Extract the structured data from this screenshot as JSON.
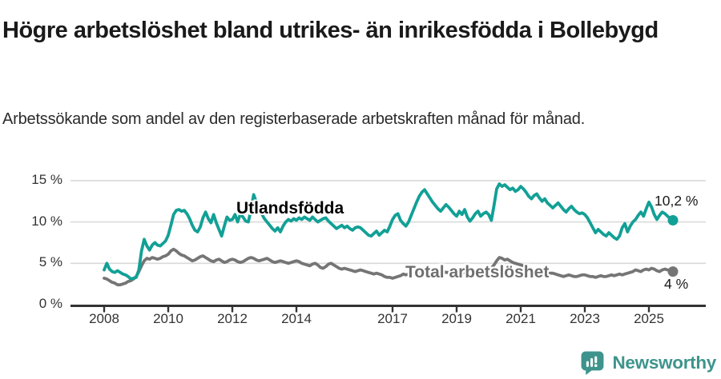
{
  "title": "Högre arbetslöshet bland utrikes- än inrikesfödda i Bollebygd",
  "subtitle": "Arbetssökande som andel av den registerbaserade arbetskraften månad för månad.",
  "branding": {
    "logo_text": "Newsworthy",
    "logo_icon": "newsworthy-speech-bubble-bar-chart"
  },
  "colors": {
    "foreign_born": "#12a096",
    "total": "#757575",
    "axis": "#333333",
    "grid": "#dadada",
    "text": "#1a1a1a",
    "logo": "#3e948c"
  },
  "chart_data": {
    "type": "line",
    "title": "Högre arbetslöshet bland utrikes- än inrikesfödda i Bollebygd",
    "subtitle": "Arbetssökande som andel av den registerbaserade arbetskraften månad för månad.",
    "unit": "%",
    "frequency": "monthly",
    "x_start_year": 2008,
    "x_end": "2025-10",
    "ylim": [
      0,
      15.5
    ],
    "grid": "horizontal",
    "x_ticks": [
      {
        "year": 2008,
        "label": "2008"
      },
      {
        "year": 2010,
        "label": "2010"
      },
      {
        "year": 2012,
        "label": "2012"
      },
      {
        "year": 2014,
        "label": "2014"
      },
      {
        "year": 2017,
        "label": "2017"
      },
      {
        "year": 2019,
        "label": "2019"
      },
      {
        "year": 2021,
        "label": "2021"
      },
      {
        "year": 2023,
        "label": "2023"
      },
      {
        "year": 2025,
        "label": "2025"
      }
    ],
    "y_ticks": [
      {
        "value": 0,
        "label": "0 %"
      },
      {
        "value": 5,
        "label": "5 %"
      },
      {
        "value": 10,
        "label": "10 %"
      },
      {
        "value": 15,
        "label": "15 %"
      }
    ],
    "series": [
      {
        "name": "Utlandsfödda",
        "color": "#12a096",
        "end_label": "10,2 %",
        "end_value": 10.2,
        "values": [
          4.2,
          5.0,
          4.3,
          4.0,
          3.9,
          4.1,
          3.9,
          3.7,
          3.6,
          3.4,
          3.1,
          3.2,
          3.3,
          4.2,
          6.5,
          7.9,
          7.1,
          6.6,
          7.2,
          7.5,
          7.2,
          7.1,
          7.4,
          7.7,
          8.4,
          9.6,
          10.9,
          11.4,
          11.5,
          11.3,
          11.4,
          11.0,
          10.4,
          9.6,
          9.0,
          8.8,
          9.4,
          10.5,
          11.2,
          10.4,
          9.9,
          10.9,
          9.9,
          9.1,
          8.3,
          9.5,
          10.6,
          10.2,
          10.3,
          10.9,
          10.0,
          11.0,
          10.6,
          10.1,
          10.0,
          11.5,
          13.3,
          12.4,
          11.5,
          11.0,
          10.4,
          10.0,
          9.6,
          9.2,
          8.9,
          9.3,
          8.8,
          9.5,
          10.0,
          10.3,
          10.1,
          10.4,
          10.2,
          10.5,
          10.3,
          10.6,
          10.4,
          10.2,
          10.6,
          10.3,
          10.0,
          10.2,
          10.4,
          10.5,
          10.1,
          9.8,
          9.5,
          9.2,
          9.4,
          9.6,
          9.3,
          9.5,
          9.2,
          9.0,
          9.3,
          9.4,
          9.3,
          9.0,
          8.7,
          8.4,
          8.3,
          8.6,
          8.9,
          8.4,
          8.7,
          9.0,
          8.8,
          9.5,
          10.3,
          10.8,
          11.0,
          10.2,
          9.8,
          9.5,
          10.0,
          10.8,
          11.6,
          12.4,
          13.1,
          13.6,
          13.9,
          13.4,
          12.9,
          12.4,
          12.0,
          11.6,
          11.3,
          11.7,
          12.1,
          11.8,
          11.4,
          11.0,
          10.7,
          11.3,
          10.9,
          11.5,
          10.6,
          10.1,
          10.5,
          11.0,
          11.3,
          10.7,
          11.0,
          11.2,
          10.9,
          10.2,
          12.0,
          14.0,
          14.6,
          14.3,
          14.5,
          14.2,
          13.9,
          14.1,
          13.7,
          13.9,
          14.3,
          14.0,
          13.6,
          13.1,
          12.8,
          13.2,
          13.4,
          12.9,
          12.5,
          12.8,
          12.3,
          12.0,
          11.7,
          12.0,
          12.3,
          11.9,
          11.5,
          11.2,
          11.6,
          11.9,
          11.5,
          11.2,
          11.0,
          11.1,
          10.9,
          10.5,
          9.9,
          9.3,
          8.7,
          9.1,
          8.8,
          8.5,
          8.3,
          8.7,
          8.4,
          8.1,
          7.9,
          8.3,
          9.3,
          9.8,
          8.8,
          9.5,
          10.0,
          10.3,
          10.8,
          11.2,
          10.7,
          11.6,
          12.4,
          11.8,
          10.9,
          10.3,
          10.8,
          11.2,
          11.0,
          10.7,
          10.4,
          10.2
        ]
      },
      {
        "name": "Total arbetslöshet",
        "color": "#757575",
        "end_label": "4 %",
        "end_value": 4.0,
        "values": [
          3.2,
          3.1,
          2.9,
          2.7,
          2.6,
          2.4,
          2.4,
          2.5,
          2.6,
          2.8,
          2.9,
          3.1,
          3.4,
          4.0,
          4.7,
          5.3,
          5.6,
          5.5,
          5.7,
          5.6,
          5.5,
          5.6,
          5.8,
          5.9,
          6.1,
          6.5,
          6.7,
          6.5,
          6.2,
          6.0,
          5.9,
          5.7,
          5.5,
          5.3,
          5.4,
          5.6,
          5.8,
          5.9,
          5.7,
          5.5,
          5.3,
          5.2,
          5.4,
          5.5,
          5.3,
          5.1,
          5.2,
          5.4,
          5.5,
          5.4,
          5.2,
          5.1,
          5.2,
          5.4,
          5.6,
          5.7,
          5.6,
          5.4,
          5.3,
          5.4,
          5.5,
          5.6,
          5.4,
          5.2,
          5.1,
          5.2,
          5.3,
          5.2,
          5.1,
          5.0,
          5.1,
          5.2,
          5.3,
          5.2,
          5.0,
          4.9,
          4.8,
          4.7,
          4.9,
          5.0,
          4.8,
          4.5,
          4.4,
          4.6,
          4.9,
          5.0,
          4.8,
          4.6,
          4.4,
          4.3,
          4.4,
          4.3,
          4.2,
          4.1,
          4.0,
          4.1,
          4.2,
          4.1,
          4.0,
          3.9,
          3.8,
          3.7,
          3.8,
          3.7,
          3.6,
          3.4,
          3.3,
          3.3,
          3.2,
          3.3,
          3.4,
          3.5,
          3.7,
          3.6,
          3.7,
          3.8,
          3.7,
          3.8,
          3.9,
          3.9,
          3.9,
          4.0,
          4.0,
          3.9,
          3.9,
          4.0,
          4.1,
          4.0,
          3.9,
          3.9,
          4.0,
          4.0,
          4.1,
          4.0,
          3.9,
          3.9,
          4.0,
          4.1,
          4.2,
          4.1,
          4.0,
          4.0,
          4.1,
          4.2,
          4.3,
          4.4,
          4.8,
          5.3,
          5.7,
          5.6,
          5.4,
          5.5,
          5.3,
          5.1,
          5.0,
          4.9,
          4.8,
          4.7,
          4.5,
          4.3,
          4.2,
          4.1,
          4.0,
          3.9,
          3.8,
          3.7,
          3.7,
          3.8,
          3.8,
          3.7,
          3.6,
          3.5,
          3.4,
          3.5,
          3.6,
          3.5,
          3.4,
          3.4,
          3.5,
          3.6,
          3.6,
          3.5,
          3.4,
          3.4,
          3.3,
          3.4,
          3.5,
          3.4,
          3.4,
          3.5,
          3.6,
          3.5,
          3.6,
          3.7,
          3.6,
          3.7,
          3.8,
          3.9,
          4.0,
          4.2,
          4.1,
          4.0,
          4.2,
          4.3,
          4.2,
          4.4,
          4.3,
          4.1,
          4.0,
          4.2,
          4.3,
          4.2,
          4.1,
          4.0
        ]
      }
    ]
  }
}
